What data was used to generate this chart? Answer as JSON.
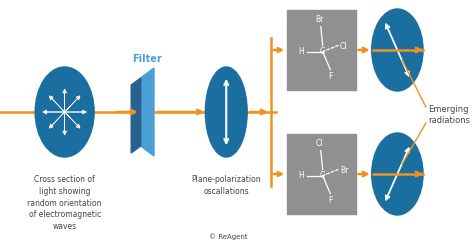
{
  "bg_color": "#ffffff",
  "orange": "#f0921f",
  "blue_oval": "#1a6ea0",
  "gray_box": "#909090",
  "text_color": "#444444",
  "filter_blue_light": "#4a9fd4",
  "filter_blue_dark": "#2a6090",
  "title_text": "Cross section of\nlight showing\nrandom orientation\nof electromagnetic\nwaves",
  "middle_text": "Plane-polarization\noscallations",
  "emerging_text": "Emerging\nradiations",
  "copyright_text": "© ReAgent"
}
